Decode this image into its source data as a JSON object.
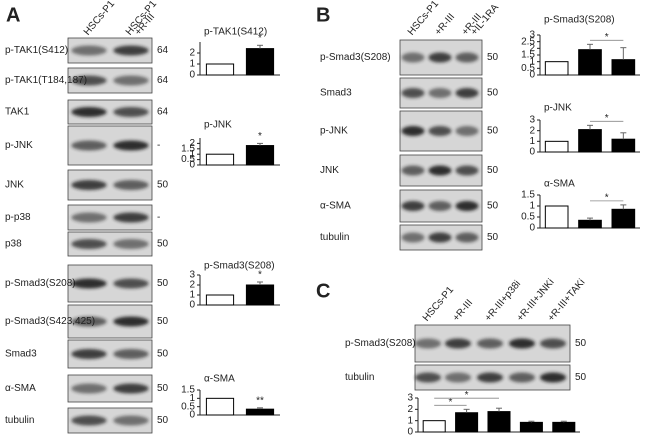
{
  "panels": {
    "A": {
      "letter": "A",
      "lanes": [
        [
          "HSCs-P1"
        ],
        [
          "HSCs-P1",
          "+R-III"
        ]
      ],
      "rows": [
        {
          "label": "p-TAK1(S412)",
          "marker": "64"
        },
        {
          "label": "p-TAK1(T184,187)",
          "marker": "64"
        },
        {
          "label": "TAK1",
          "marker": "64"
        },
        {
          "label": "p-JNK",
          "marker": "-"
        },
        {
          "label": "JNK",
          "marker": "50"
        },
        {
          "label": "p-p38",
          "marker": "-"
        },
        {
          "label": "p38",
          "marker": "50"
        },
        {
          "label": "p-Smad3(S208)",
          "marker": "50"
        },
        {
          "label": "p-Smad3(S423,425)",
          "marker": "50"
        },
        {
          "label": "Smad3",
          "marker": "50"
        },
        {
          "label": "α-SMA",
          "marker": "50"
        },
        {
          "label": "tubulin",
          "marker": "50"
        }
      ]
    },
    "B": {
      "letter": "B",
      "lanes": [
        [
          "HSCs-P1"
        ],
        [
          "+R-III"
        ],
        [
          "+R-III",
          "+IL-1RA"
        ]
      ],
      "rows": [
        {
          "label": "p-Smad3(S208)",
          "marker": "50"
        },
        {
          "label": "Smad3",
          "marker": "50"
        },
        {
          "label": "p-JNK",
          "marker": "50"
        },
        {
          "label": "JNK",
          "marker": "50"
        },
        {
          "label": "α-SMA",
          "marker": "50"
        },
        {
          "label": "tubulin",
          "marker": "50"
        }
      ]
    },
    "C": {
      "letter": "C",
      "lanes": [
        [
          "HSCs-P1"
        ],
        [
          "+R-III"
        ],
        [
          "+R-III+p38i"
        ],
        [
          "+R-III+JNKi"
        ],
        [
          "+R-III+TAKi"
        ]
      ],
      "rows": [
        {
          "label": "p-Smad3(S208)",
          "marker": "50"
        },
        {
          "label": "tubulin",
          "marker": "50"
        }
      ]
    }
  },
  "chart_data": [
    {
      "type": "bar",
      "title": "p-TAK1(S412)",
      "categories": [
        null,
        null
      ],
      "values": [
        1,
        2.4
      ],
      "errors": [
        null,
        0.3
      ],
      "colors": [
        "#ffffff",
        "#000000"
      ],
      "ylim": [
        0,
        3
      ],
      "yticks": [
        0,
        1,
        2
      ],
      "annotations": [
        "*"
      ]
    },
    {
      "type": "bar",
      "title": "p-JNK",
      "categories": [
        null,
        null
      ],
      "values": [
        1,
        1.8
      ],
      "errors": [
        null,
        0.2
      ],
      "colors": [
        "#ffffff",
        "#000000"
      ],
      "ylim": [
        0,
        2.5
      ],
      "yticks": [
        0,
        0.5,
        1,
        1.5,
        2
      ],
      "annotations": [
        "*"
      ]
    },
    {
      "type": "bar",
      "title": "p-Smad3(S208)",
      "categories": [
        null,
        null
      ],
      "values": [
        1,
        2.0
      ],
      "errors": [
        null,
        0.3
      ],
      "colors": [
        "#ffffff",
        "#000000"
      ],
      "ylim": [
        0,
        3
      ],
      "yticks": [
        0,
        1,
        2,
        3
      ],
      "annotations": [
        "*"
      ]
    },
    {
      "type": "bar",
      "title": "α-SMA",
      "categories": [
        null,
        null
      ],
      "values": [
        1,
        0.35
      ],
      "errors": [
        null,
        0.08
      ],
      "colors": [
        "#ffffff",
        "#000000"
      ],
      "ylim": [
        0,
        1.5
      ],
      "yticks": [
        0,
        0.5,
        1,
        1.5
      ],
      "annotations": [
        "**"
      ]
    },
    {
      "type": "bar",
      "title": "p-Smad3(S208)",
      "categories": [
        null,
        null,
        null
      ],
      "values": [
        1,
        1.9,
        1.15
      ],
      "errors": [
        null,
        0.4,
        0.9
      ],
      "colors": [
        "#ffffff",
        "#000000",
        "#000000"
      ],
      "ylim": [
        0,
        3
      ],
      "yticks": [
        0,
        0.5,
        1,
        1.5,
        2,
        2.5,
        3
      ],
      "annotations": [
        "*"
      ]
    },
    {
      "type": "bar",
      "title": "p-JNK",
      "categories": [
        null,
        null,
        null
      ],
      "values": [
        1,
        2.1,
        1.2
      ],
      "errors": [
        null,
        0.4,
        0.6
      ],
      "colors": [
        "#ffffff",
        "#000000",
        "#000000"
      ],
      "ylim": [
        0,
        3
      ],
      "yticks": [
        0,
        1,
        2,
        3
      ],
      "annotations": [
        "*"
      ]
    },
    {
      "type": "bar",
      "title": "α-SMA",
      "categories": [
        null,
        null,
        null
      ],
      "values": [
        1,
        0.35,
        0.85
      ],
      "errors": [
        null,
        0.1,
        0.2
      ],
      "colors": [
        "#ffffff",
        "#000000",
        "#000000"
      ],
      "ylim": [
        0,
        1.5
      ],
      "yticks": [
        0,
        0.5,
        1,
        1.5
      ],
      "annotations": [
        "*"
      ]
    },
    {
      "type": "bar",
      "categories": [
        null,
        null,
        null,
        null,
        null
      ],
      "values": [
        1,
        1.7,
        1.8,
        0.85,
        0.85
      ],
      "errors": [
        null,
        0.3,
        0.3,
        0.1,
        0.1
      ],
      "colors": [
        "#ffffff",
        "#000000",
        "#000000",
        "#000000",
        "#000000"
      ],
      "ylim": [
        0,
        3
      ],
      "yticks": [
        0,
        1,
        2,
        3
      ],
      "annotations": [
        "*",
        "*"
      ]
    }
  ]
}
